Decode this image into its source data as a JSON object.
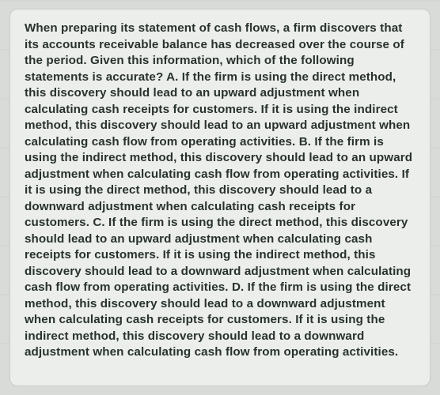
{
  "card": {
    "background_color": "#eceeec",
    "border_color": "#c8cbc8",
    "border_radius": 10
  },
  "page": {
    "background_color": "#d8dbd8",
    "stripe_color": "#c8cbc8"
  },
  "text": {
    "color": "#28322b",
    "font_size": 15.2,
    "line_height": 20.5,
    "font_weight": 600,
    "body": "When preparing its statement of cash flows, a firm discovers that its accounts receivable balance has decreased over the course of the period. Given this information, which of the following statements is accurate? A. If the firm is using the direct method, this discovery should lead to an upward adjustment when calculating cash receipts for customers. If it is using the indirect method, this discovery should lead to an upward adjustment when calculating cash flow from operating activities. B. If the firm is using the indirect method, this discovery should lead to an upward adjustment when calculating cash flow from operating activities. If it is using the direct method, this discovery should lead to a downward adjustment when calculating cash receipts for customers. C. If the firm is using the direct method, this discovery should lead to an upward adjustment when calculating cash receipts for customers. If it is using the indirect method, this discovery should lead to a downward adjustment when calculating cash flow from operating activities. D. If the firm is using the direct method, this discovery should lead to a downward adjustment when calculating cash receipts for customers. If it is using the indirect method, this discovery should lead to a downward adjustment when calculating cash flow from operating activities."
  }
}
